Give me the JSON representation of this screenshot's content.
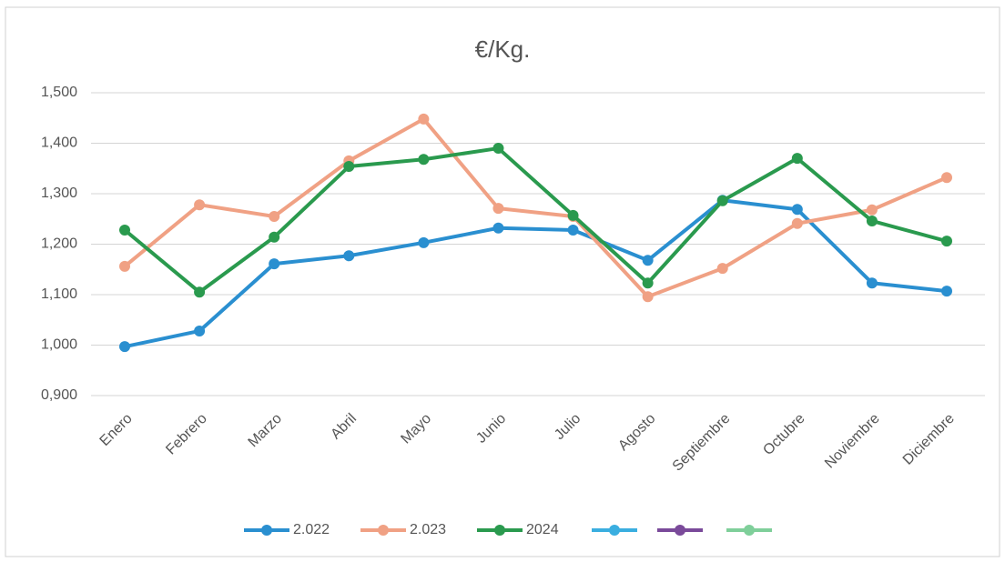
{
  "chart_data": {
    "type": "line",
    "title": "€/Kg.",
    "categories": [
      "Enero",
      "Febrero",
      "Marzo",
      "Abril",
      "Mayo",
      "Junio",
      "Julio",
      "Agosto",
      "Septiembre",
      "Octubre",
      "Noviembre",
      "Diciembre"
    ],
    "series": [
      {
        "name": "2.022",
        "color": "#2a8fd0",
        "values": [
          0.997,
          1.028,
          1.161,
          1.177,
          1.203,
          1.232,
          1.228,
          1.168,
          1.287,
          1.269,
          1.123,
          1.107
        ]
      },
      {
        "name": "2.023",
        "color": "#f0a184",
        "values": [
          1.156,
          1.278,
          1.255,
          1.365,
          1.448,
          1.271,
          1.255,
          1.096,
          1.152,
          1.241,
          1.268,
          1.332
        ]
      },
      {
        "name": "2024",
        "color": "#2a9a4e",
        "values": [
          1.228,
          1.105,
          1.214,
          1.354,
          1.368,
          1.39,
          1.257,
          1.123,
          1.286,
          1.37,
          1.246,
          1.206
        ]
      }
    ],
    "ylim": [
      0.9,
      1.5
    ],
    "yticks": [
      {
        "value": 0.9,
        "label": "0,900"
      },
      {
        "value": 1.0,
        "label": "1,000"
      },
      {
        "value": 1.1,
        "label": "1,100"
      },
      {
        "value": 1.2,
        "label": "1,200"
      },
      {
        "value": 1.3,
        "label": "1,300"
      },
      {
        "value": 1.4,
        "label": "1,400"
      },
      {
        "value": 1.5,
        "label": "1,500"
      }
    ],
    "grid": true,
    "legend": "bottom"
  }
}
